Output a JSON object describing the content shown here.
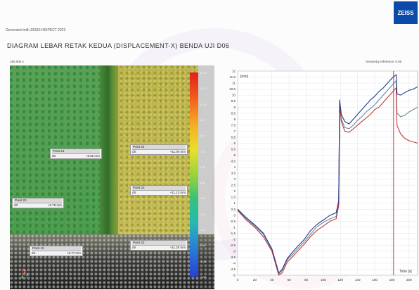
{
  "header": {
    "generated_with": "Generated with ZEISS INSPECT 2023",
    "logo_text": "ZEISS",
    "title": "DIAGRAM LEBAR RETAK KEDUA (DISPLACEMENT-X) BENDA UJI D06"
  },
  "image_panel": {
    "stage_label": "180.000 s",
    "colorbar_ticks": [
      "12.00",
      "11.40",
      "10.80",
      "9.60",
      "8.40",
      "7.20",
      "6.00",
      "4.80",
      "3.60",
      "2.40",
      "1.20",
      "0.00",
      "-1.20",
      "-2.40"
    ],
    "colorbar_colors": {
      "top": "#e0201c",
      "bottom": "#2a3fd0"
    },
    "points": [
      {
        "name": "Point 21",
        "label": "dX",
        "value": "+8.66 mm"
      },
      {
        "name": "Point 24",
        "label": "dX",
        "value": "+11.00 mm"
      },
      {
        "name": "Point 23",
        "label": "dX",
        "value": "+11.13 mm"
      },
      {
        "name": "Point 20",
        "label": "dX",
        "value": "+8.78 mm"
      },
      {
        "name": "Point 22",
        "label": "dX",
        "value": "+11.25 mm"
      },
      {
        "name": "Point 19",
        "label": "dX",
        "value": "+8.77 mm"
      }
    ],
    "axis_labels": {
      "z": "Z",
      "x": "X"
    }
  },
  "chart_data": {
    "type": "line",
    "reference_label": "Geometry reference: 0.00",
    "y_unit_label": "[mm]",
    "xlabel": "Time [s]",
    "xlim": [
      0,
      210
    ],
    "ylim": [
      -5,
      12
    ],
    "x_ticks": [
      0,
      20,
      40,
      60,
      80,
      100,
      120,
      140,
      160,
      180,
      200
    ],
    "y_ticks": [
      12,
      11.5,
      11,
      10.5,
      10,
      9.5,
      9,
      8.5,
      8,
      7.5,
      7,
      6.5,
      6,
      5.5,
      5,
      4.5,
      4,
      3.5,
      3,
      2.5,
      2,
      1.5,
      1,
      0.5,
      0,
      -0.5,
      -1,
      -1.5,
      -2,
      -2.5,
      -3,
      -3.5,
      -4,
      -4.5,
      -5
    ],
    "grid": true,
    "marker_x": 182,
    "marker_color": "#b01818",
    "series": [
      {
        "color": "#1f3b8c",
        "values": [
          [
            0,
            0.5
          ],
          [
            10,
            -0.2
          ],
          [
            20,
            -0.8
          ],
          [
            30,
            -1.5
          ],
          [
            40,
            -2.8
          ],
          [
            48,
            -4.8
          ],
          [
            52,
            -4.5
          ],
          [
            58,
            -3.6
          ],
          [
            65,
            -3.0
          ],
          [
            70,
            -2.6
          ],
          [
            78,
            -2.0
          ],
          [
            85,
            -1.3
          ],
          [
            92,
            -0.8
          ],
          [
            100,
            -0.4
          ],
          [
            108,
            0
          ],
          [
            115,
            0.2
          ],
          [
            118,
            1.2
          ],
          [
            119,
            9.6
          ],
          [
            121,
            8.4
          ],
          [
            125,
            7.8
          ],
          [
            130,
            7.6
          ],
          [
            135,
            8.0
          ],
          [
            140,
            8.4
          ],
          [
            145,
            8.8
          ],
          [
            150,
            9.2
          ],
          [
            155,
            9.6
          ],
          [
            160,
            9.9
          ],
          [
            165,
            10.3
          ],
          [
            170,
            10.6
          ],
          [
            175,
            11.0
          ],
          [
            180,
            11.4
          ],
          [
            185,
            11.7
          ],
          [
            186,
            10.1
          ],
          [
            190,
            10.0
          ],
          [
            195,
            10.2
          ],
          [
            200,
            10.4
          ],
          [
            205,
            10.5
          ],
          [
            210,
            10.7
          ]
        ]
      },
      {
        "color": "#c23838",
        "values": [
          [
            0,
            0.4
          ],
          [
            10,
            -0.4
          ],
          [
            20,
            -1.0
          ],
          [
            30,
            -1.8
          ],
          [
            40,
            -3.0
          ],
          [
            48,
            -5.0
          ],
          [
            52,
            -4.8
          ],
          [
            58,
            -3.9
          ],
          [
            65,
            -3.4
          ],
          [
            70,
            -3.0
          ],
          [
            78,
            -2.4
          ],
          [
            85,
            -1.8
          ],
          [
            92,
            -1.3
          ],
          [
            100,
            -0.9
          ],
          [
            108,
            -0.5
          ],
          [
            115,
            -0.3
          ],
          [
            118,
            0.8
          ],
          [
            119,
            9.2
          ],
          [
            121,
            7.8
          ],
          [
            125,
            7.0
          ],
          [
            130,
            6.9
          ],
          [
            135,
            7.2
          ],
          [
            140,
            7.5
          ],
          [
            145,
            7.8
          ],
          [
            150,
            8.1
          ],
          [
            155,
            8.4
          ],
          [
            160,
            8.8
          ],
          [
            165,
            9.0
          ],
          [
            170,
            9.4
          ],
          [
            175,
            9.8
          ],
          [
            180,
            10.2
          ],
          [
            185,
            10.6
          ],
          [
            186,
            7.5
          ],
          [
            190,
            6.8
          ],
          [
            195,
            6.4
          ],
          [
            200,
            6.2
          ],
          [
            205,
            6.1
          ],
          [
            210,
            6.0
          ]
        ]
      },
      {
        "color": "#6a8a9a",
        "values": [
          [
            0,
            0.45
          ],
          [
            10,
            -0.3
          ],
          [
            20,
            -0.9
          ],
          [
            30,
            -1.6
          ],
          [
            40,
            -2.9
          ],
          [
            48,
            -4.9
          ],
          [
            52,
            -4.6
          ],
          [
            58,
            -3.7
          ],
          [
            65,
            -3.2
          ],
          [
            70,
            -2.8
          ],
          [
            78,
            -2.2
          ],
          [
            85,
            -1.6
          ],
          [
            92,
            -1.0
          ],
          [
            100,
            -0.6
          ],
          [
            108,
            -0.3
          ],
          [
            115,
            -0.1
          ],
          [
            118,
            1.0
          ],
          [
            119,
            9.4
          ],
          [
            121,
            8.0
          ],
          [
            125,
            7.3
          ],
          [
            130,
            7.2
          ],
          [
            135,
            7.5
          ],
          [
            140,
            7.9
          ],
          [
            145,
            8.2
          ],
          [
            150,
            8.6
          ],
          [
            155,
            8.9
          ],
          [
            160,
            9.2
          ],
          [
            165,
            9.6
          ],
          [
            170,
            10.0
          ],
          [
            175,
            10.4
          ],
          [
            180,
            10.8
          ],
          [
            185,
            11.2
          ],
          [
            186,
            8.5
          ],
          [
            190,
            8.2
          ],
          [
            195,
            8.3
          ],
          [
            200,
            8.6
          ],
          [
            205,
            8.8
          ],
          [
            210,
            9.0
          ]
        ]
      }
    ]
  }
}
